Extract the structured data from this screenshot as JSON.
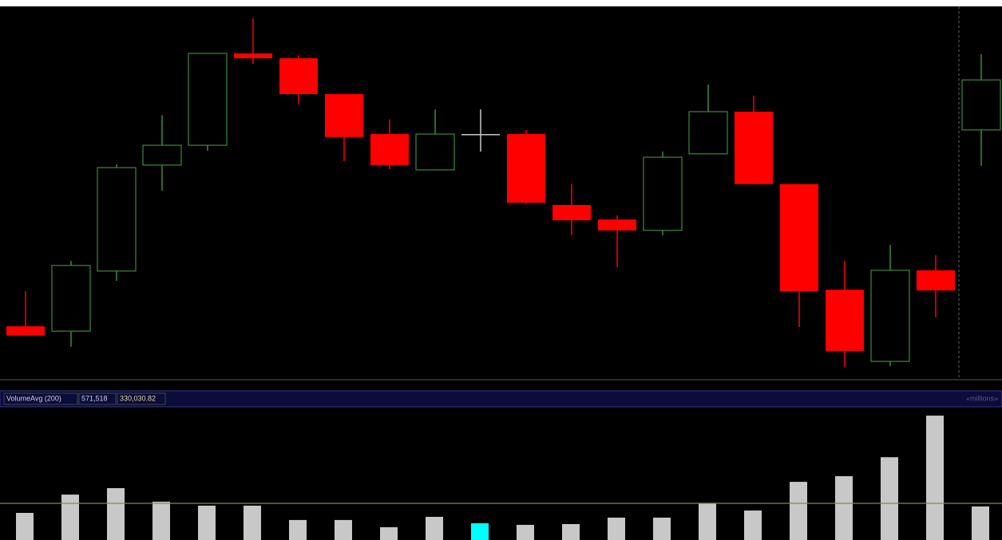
{
  "chart_data": [
    {
      "type": "candlestick",
      "open": [
        14.3,
        13.0,
        29.1,
        57.5,
        62.8,
        87.4,
        86.1,
        76.5,
        65.8,
        56.2,
        65.8,
        65.8,
        46.8,
        42.9,
        40.0,
        60.5,
        71.8,
        52.4,
        24.1,
        4.9,
        29.3,
        66.9
      ],
      "high": [
        23.7,
        31.8,
        57.7,
        70.9,
        87.4,
        96.8,
        86.8,
        76.5,
        69.7,
        72.4,
        72.4,
        66.9,
        52.4,
        44.0,
        61.1,
        79.1,
        76.1,
        52.4,
        31.8,
        36.1,
        33.3,
        87.2
      ],
      "low": [
        11.8,
        8.8,
        26.5,
        50.6,
        61.3,
        84.6,
        73.7,
        58.5,
        56.4,
        56.2,
        61.1,
        47.0,
        38.7,
        30.1,
        38.7,
        60.5,
        52.4,
        14.1,
        3.4,
        3.6,
        16.7,
        57.3
      ],
      "close": [
        11.8,
        30.6,
        56.8,
        62.8,
        87.4,
        86.1,
        76.5,
        65.0,
        57.5,
        65.8,
        65.8,
        47.4,
        42.7,
        40.0,
        59.6,
        71.8,
        52.4,
        23.7,
        7.7,
        29.3,
        23.9,
        80.3
      ],
      "up_color": "#3a8a3a",
      "down_color": "#ff0000",
      "doji_color": "#c8c8c8",
      "ylim": [
        0,
        100
      ]
    },
    {
      "type": "bar",
      "label": "VolumeAvg (200)",
      "readout": [
        "571,518",
        "330,030.82"
      ],
      "units": "«millions»",
      "values": [
        20.6,
        34.5,
        39.4,
        29.1,
        26.1,
        26.1,
        15.2,
        15.2,
        9.7,
        17.6,
        12.7,
        11.5,
        12.1,
        17.0,
        17.0,
        27.9,
        22.4,
        44.2,
        48.5,
        62.9,
        94.5,
        25.5
      ],
      "colors": [
        "#c8c8c8",
        "#c8c8c8",
        "#c8c8c8",
        "#c8c8c8",
        "#c8c8c8",
        "#c8c8c8",
        "#c8c8c8",
        "#c8c8c8",
        "#c8c8c8",
        "#c8c8c8",
        "#00ffff",
        "#c8c8c8",
        "#c8c8c8",
        "#c8c8c8",
        "#c8c8c8",
        "#c8c8c8",
        "#c8c8c8",
        "#c8c8c8",
        "#c8c8c8",
        "#c8c8c8",
        "#c8c8c8",
        "#c8c8c8"
      ],
      "average": 27.9,
      "average_color": "#8a8a30",
      "ylim": [
        0,
        100
      ]
    }
  ]
}
